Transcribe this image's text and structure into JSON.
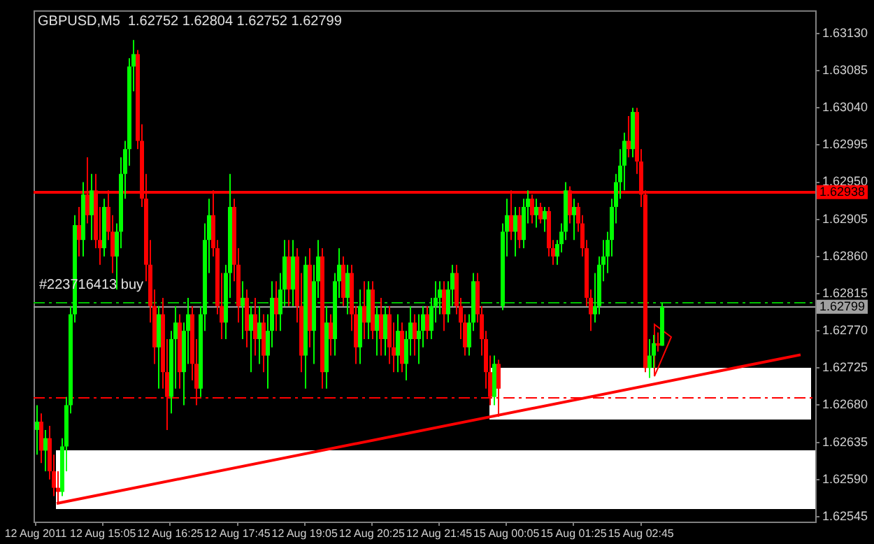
{
  "chart_data": {
    "type": "candlestick",
    "title": "GBPUSD,M5  1.62752 1.62804 1.62752 1.62799",
    "categories": [
      "12 Aug 2011",
      null,
      null,
      null,
      null,
      null,
      null,
      null,
      null,
      null,
      null,
      null,
      null,
      null,
      null,
      null,
      "12 Aug 15:05",
      null,
      null,
      null,
      null,
      null,
      null,
      null,
      null,
      null,
      null,
      null,
      null,
      null,
      null,
      null,
      "12 Aug 16:25",
      null,
      null,
      null,
      null,
      null,
      null,
      null,
      null,
      null,
      null,
      null,
      null,
      null,
      null,
      null,
      "12 Aug 17:45",
      null,
      null,
      null,
      null,
      null,
      null,
      null,
      null,
      null,
      null,
      null,
      null,
      null,
      null,
      null,
      "12 Aug 19:05",
      null,
      null,
      null,
      null,
      null,
      null,
      null,
      null,
      null,
      null,
      null,
      null,
      null,
      null,
      null,
      "12 Aug 20:25",
      null,
      null,
      null,
      null,
      null,
      null,
      null,
      null,
      null,
      null,
      null,
      null,
      null,
      null,
      null,
      "12 Aug 21:45",
      null,
      null,
      null,
      null,
      null,
      null,
      null,
      null,
      null,
      null,
      null,
      null,
      null,
      null,
      null,
      "15 Aug 00:05",
      null,
      null,
      null,
      null,
      null,
      null,
      null,
      null,
      null,
      null,
      null,
      null,
      null,
      null,
      null,
      "15 Aug 01:25",
      null,
      null,
      null,
      null,
      null,
      null,
      null,
      null,
      null,
      null,
      null,
      null,
      null,
      null,
      null,
      "15 Aug 02:45",
      null,
      null,
      null,
      null,
      null,
      null,
      null,
      null,
      null,
      null,
      null,
      null,
      null,
      null,
      null,
      null,
      null,
      null,
      null,
      null,
      null,
      null,
      null,
      null,
      null,
      null,
      null,
      null,
      null,
      null,
      null,
      null,
      null,
      null,
      null,
      null,
      null,
      null,
      null,
      null,
      null
    ],
    "ohlc": [
      [
        1.6265,
        1.6268,
        1.6262,
        1.6266
      ],
      [
        1.6266,
        1.6267,
        1.6261,
        1.62625
      ],
      [
        1.62625,
        1.6265,
        1.626,
        1.6264
      ],
      [
        1.6264,
        1.62655,
        1.6259,
        1.626
      ],
      [
        1.626,
        1.6262,
        1.6257,
        1.6258
      ],
      [
        1.6258,
        1.626,
        1.62561,
        1.62575
      ],
      [
        1.62575,
        1.6264,
        1.6257,
        1.6263
      ],
      [
        1.6263,
        1.6269,
        1.626,
        1.6268
      ],
      [
        1.6268,
        1.628,
        1.6267,
        1.6279
      ],
      [
        1.6279,
        1.6291,
        1.6278,
        1.62898
      ],
      [
        1.62898,
        1.6292,
        1.6286,
        1.6288
      ],
      [
        1.6288,
        1.6295,
        1.6286,
        1.62935
      ],
      [
        1.62935,
        1.6298,
        1.629,
        1.6291
      ],
      [
        1.6291,
        1.6296,
        1.6288,
        1.6294
      ],
      [
        1.6294,
        1.6296,
        1.6287,
        1.6288
      ],
      [
        1.6288,
        1.6292,
        1.6285,
        1.6287
      ],
      [
        1.6287,
        1.6293,
        1.6286,
        1.6292
      ],
      [
        1.6292,
        1.6294,
        1.6288,
        1.6289
      ],
      [
        1.6289,
        1.6291,
        1.6284,
        1.6286
      ],
      [
        1.6286,
        1.629,
        1.6282,
        1.6289
      ],
      [
        1.6289,
        1.6298,
        1.6287,
        1.6296
      ],
      [
        1.6296,
        1.63,
        1.6293,
        1.6299
      ],
      [
        1.6299,
        1.631,
        1.6297,
        1.6309
      ],
      [
        1.6309,
        1.63122,
        1.6306,
        1.63105
      ],
      [
        1.63105,
        1.6311,
        1.6299,
        1.63
      ],
      [
        1.63,
        1.6302,
        1.6292,
        1.6293
      ],
      [
        1.6293,
        1.6296,
        1.6283,
        1.6285
      ],
      [
        1.6285,
        1.6288,
        1.6278,
        1.628
      ],
      [
        1.628,
        1.6282,
        1.6273,
        1.6275
      ],
      [
        1.6275,
        1.628,
        1.627,
        1.6279
      ],
      [
        1.6279,
        1.6281,
        1.627,
        1.6272
      ],
      [
        1.6272,
        1.6276,
        1.6265,
        1.6269
      ],
      [
        1.6269,
        1.6277,
        1.6267,
        1.6276
      ],
      [
        1.6276,
        1.628,
        1.627,
        1.6278
      ],
      [
        1.6278,
        1.6279,
        1.627,
        1.6272
      ],
      [
        1.6272,
        1.6278,
        1.6268,
        1.6277
      ],
      [
        1.6277,
        1.6281,
        1.6273,
        1.6279
      ],
      [
        1.6279,
        1.628,
        1.6271,
        1.6273
      ],
      [
        1.6273,
        1.6276,
        1.6268,
        1.627
      ],
      [
        1.627,
        1.628,
        1.6269,
        1.6279
      ],
      [
        1.6279,
        1.629,
        1.6277,
        1.6288
      ],
      [
        1.6288,
        1.6293,
        1.6284,
        1.6291
      ],
      [
        1.6291,
        1.6294,
        1.6286,
        1.6287
      ],
      [
        1.6287,
        1.6288,
        1.6279,
        1.628
      ],
      [
        1.628,
        1.6284,
        1.6276,
        1.6278
      ],
      [
        1.6278,
        1.6285,
        1.6276,
        1.6284
      ],
      [
        1.6284,
        1.6296,
        1.6281,
        1.6292
      ],
      [
        1.6292,
        1.6293,
        1.6283,
        1.6285
      ],
      [
        1.6285,
        1.6287,
        1.6278,
        1.628
      ],
      [
        1.628,
        1.6283,
        1.6276,
        1.6281
      ],
      [
        1.6281,
        1.6282,
        1.6275,
        1.6277
      ],
      [
        1.6277,
        1.628,
        1.6272,
        1.6279
      ],
      [
        1.6279,
        1.6281,
        1.6274,
        1.6276
      ],
      [
        1.6276,
        1.628,
        1.6273,
        1.6278
      ],
      [
        1.6278,
        1.6279,
        1.6272,
        1.6274
      ],
      [
        1.6274,
        1.6279,
        1.627,
        1.6277
      ],
      [
        1.6277,
        1.6283,
        1.6275,
        1.6281
      ],
      [
        1.6281,
        1.6283,
        1.6277,
        1.6279
      ],
      [
        1.6279,
        1.6284,
        1.6277,
        1.6282
      ],
      [
        1.6282,
        1.6288,
        1.628,
        1.6286
      ],
      [
        1.6286,
        1.6288,
        1.628,
        1.6282
      ],
      [
        1.6282,
        1.6288,
        1.628,
        1.6286
      ],
      [
        1.6286,
        1.6287,
        1.6278,
        1.628
      ],
      [
        1.628,
        1.6284,
        1.6272,
        1.6274
      ],
      [
        1.6274,
        1.6286,
        1.627,
        1.6285
      ],
      [
        1.6285,
        1.6287,
        1.6275,
        1.6277
      ],
      [
        1.6277,
        1.6285,
        1.6273,
        1.6283
      ],
      [
        1.6283,
        1.6288,
        1.6281,
        1.6286
      ],
      [
        1.6286,
        1.6287,
        1.627,
        1.6272
      ],
      [
        1.6272,
        1.628,
        1.627,
        1.6278
      ],
      [
        1.6278,
        1.6279,
        1.6274,
        1.6276
      ],
      [
        1.6276,
        1.6284,
        1.6274,
        1.6283
      ],
      [
        1.6283,
        1.6287,
        1.6281,
        1.6285
      ],
      [
        1.6285,
        1.6286,
        1.628,
        1.6281
      ],
      [
        1.6281,
        1.6285,
        1.6279,
        1.6284
      ],
      [
        1.6284,
        1.6285,
        1.6277,
        1.6279
      ],
      [
        1.6279,
        1.628,
        1.6273,
        1.6275
      ],
      [
        1.6275,
        1.6282,
        1.6273,
        1.628
      ],
      [
        1.628,
        1.6283,
        1.6276,
        1.6278
      ],
      [
        1.6278,
        1.6283,
        1.6276,
        1.6282
      ],
      [
        1.6282,
        1.6283,
        1.6276,
        1.6277
      ],
      [
        1.6277,
        1.628,
        1.6274,
        1.6279
      ],
      [
        1.6279,
        1.6281,
        1.6274,
        1.6276
      ],
      [
        1.6276,
        1.628,
        1.6274,
        1.6279
      ],
      [
        1.6279,
        1.628,
        1.6273,
        1.6275
      ],
      [
        1.6275,
        1.6278,
        1.6272,
        1.6274
      ],
      [
        1.6274,
        1.6279,
        1.6272,
        1.6277
      ],
      [
        1.6277,
        1.6278,
        1.6272,
        1.6273
      ],
      [
        1.6273,
        1.6277,
        1.6271,
        1.6276
      ],
      [
        1.6276,
        1.628,
        1.6274,
        1.6278
      ],
      [
        1.6278,
        1.6279,
        1.6274,
        1.6276
      ],
      [
        1.6276,
        1.6279,
        1.6273,
        1.6277
      ],
      [
        1.6277,
        1.628,
        1.6275,
        1.6279
      ],
      [
        1.6279,
        1.628,
        1.6276,
        1.6277
      ],
      [
        1.6277,
        1.6281,
        1.6276,
        1.628
      ],
      [
        1.628,
        1.6283,
        1.6278,
        1.6281
      ],
      [
        1.6281,
        1.6283,
        1.6279,
        1.6282
      ],
      [
        1.6282,
        1.6283,
        1.6277,
        1.6279
      ],
      [
        1.6279,
        1.6283,
        1.6278,
        1.6282
      ],
      [
        1.6282,
        1.6285,
        1.628,
        1.6284
      ],
      [
        1.6284,
        1.6285,
        1.6279,
        1.628
      ],
      [
        1.628,
        1.6281,
        1.6276,
        1.6278
      ],
      [
        1.6278,
        1.6279,
        1.6274,
        1.6275
      ],
      [
        1.6275,
        1.6279,
        1.6274,
        1.6278
      ],
      [
        1.6278,
        1.6284,
        1.6277,
        1.6283
      ],
      [
        1.6283,
        1.6284,
        1.6278,
        1.6279
      ],
      [
        1.6279,
        1.628,
        1.6274,
        1.6276
      ],
      [
        1.6276,
        1.6277,
        1.627,
        1.6272
      ],
      [
        1.6272,
        1.6274,
        1.6268,
        1.6269
      ],
      [
        1.6269,
        1.6274,
        1.6268,
        1.6273
      ],
      [
        1.6273,
        1.62735,
        1.62666,
        1.627
      ],
      [
        1.628,
        1.629,
        1.62795,
        1.6289
      ],
      [
        1.6289,
        1.6293,
        1.6286,
        1.6291
      ],
      [
        1.6291,
        1.6294,
        1.6288,
        1.6289
      ],
      [
        1.6289,
        1.6292,
        1.6286,
        1.6291
      ],
      [
        1.6291,
        1.6292,
        1.6287,
        1.6288
      ],
      [
        1.6288,
        1.6293,
        1.6287,
        1.6292
      ],
      [
        1.6292,
        1.6294,
        1.629,
        1.6293
      ],
      [
        1.6293,
        1.62935,
        1.629,
        1.6291
      ],
      [
        1.6291,
        1.6293,
        1.62895,
        1.6292
      ],
      [
        1.6292,
        1.62925,
        1.629,
        1.62905
      ],
      [
        1.62905,
        1.6292,
        1.6289,
        1.62915
      ],
      [
        1.62915,
        1.6292,
        1.6286,
        1.6287
      ],
      [
        1.6287,
        1.6288,
        1.6285,
        1.6286
      ],
      [
        1.6286,
        1.6288,
        1.6285,
        1.62875
      ],
      [
        1.62875,
        1.629,
        1.62865,
        1.6289
      ],
      [
        1.6289,
        1.6295,
        1.6288,
        1.6294
      ],
      [
        1.6294,
        1.62945,
        1.629,
        1.6291
      ],
      [
        1.6291,
        1.6293,
        1.6288,
        1.6292
      ],
      [
        1.6292,
        1.62925,
        1.6289,
        1.629
      ],
      [
        1.629,
        1.6291,
        1.6286,
        1.6287
      ],
      [
        1.6287,
        1.6288,
        1.628,
        1.6281
      ],
      [
        1.6281,
        1.6282,
        1.6277,
        1.6279
      ],
      [
        1.6279,
        1.6284,
        1.6278,
        1.628
      ],
      [
        1.628,
        1.6286,
        1.6279,
        1.6285
      ],
      [
        1.6285,
        1.6288,
        1.6283,
        1.6286
      ],
      [
        1.6286,
        1.6289,
        1.6284,
        1.6288
      ],
      [
        1.6288,
        1.6293,
        1.6286,
        1.6292
      ],
      [
        1.6292,
        1.6296,
        1.629,
        1.6295
      ],
      [
        1.6295,
        1.6299,
        1.6293,
        1.6297
      ],
      [
        1.6297,
        1.6301,
        1.6294,
        1.63
      ],
      [
        1.63,
        1.6303,
        1.6298,
        1.6299
      ],
      [
        1.6299,
        1.6304,
        1.6298,
        1.63035
      ],
      [
        1.63035,
        1.6304,
        1.6296,
        1.62975
      ],
      [
        1.62975,
        1.6299,
        1.6292,
        1.62935
      ],
      [
        1.62935,
        1.6294,
        1.6272,
        1.62725
      ],
      [
        1.62725,
        1.6276,
        1.62713,
        1.6274
      ],
      [
        1.6274,
        1.62765,
        1.62725,
        1.62755
      ],
      [
        1.62755,
        1.62768,
        1.62745,
        1.62752
      ],
      [
        1.62752,
        1.62804,
        1.62752,
        1.62799
      ],
      null,
      null,
      null,
      null,
      null,
      null,
      null,
      null,
      null,
      null,
      null,
      null,
      null,
      null,
      null,
      null,
      null,
      null,
      null,
      null,
      null,
      null,
      null,
      null,
      null,
      null,
      null,
      null,
      null,
      null,
      null,
      null,
      null,
      null,
      null,
      null
    ],
    "series": [
      {
        "type": "line",
        "color": "#ff0000",
        "values": [
          null,
          null,
          null,
          null,
          null,
          1.62561,
          null,
          null,
          null,
          null,
          null,
          null,
          null,
          null,
          null,
          null,
          null,
          null,
          null,
          null,
          null,
          null,
          null,
          null,
          null,
          null,
          null,
          null,
          null,
          null,
          null,
          null,
          null,
          null,
          null,
          null,
          null,
          null,
          null,
          null,
          null,
          null,
          null,
          null,
          null,
          null,
          null,
          null,
          null,
          null,
          null,
          null,
          null,
          null,
          null,
          null,
          null,
          null,
          null,
          null,
          null,
          null,
          null,
          null,
          null,
          null,
          null,
          null,
          null,
          null,
          null,
          null,
          null,
          null,
          null,
          null,
          null,
          null,
          null,
          null,
          null,
          null,
          null,
          null,
          null,
          null,
          null,
          null,
          null,
          null,
          null,
          null,
          null,
          null,
          null,
          null,
          null,
          null,
          null,
          null,
          null,
          null,
          null,
          null,
          null,
          null,
          null,
          null,
          null,
          null,
          null,
          null,
          null,
          null,
          null,
          null,
          null,
          null,
          null,
          null,
          null,
          null,
          null,
          null,
          null,
          null,
          null,
          null,
          null,
          null,
          null,
          null,
          null,
          null,
          null,
          null,
          null,
          null,
          null,
          null,
          null,
          null,
          null,
          null,
          null,
          null,
          null,
          null,
          null,
          null,
          null,
          null,
          null,
          null,
          null,
          null,
          null,
          null,
          null,
          null,
          null,
          null,
          null,
          null,
          null,
          null,
          null,
          null,
          null,
          null,
          null,
          null,
          null,
          null,
          null,
          null,
          null,
          null,
          null,
          null,
          null,
          null,
          1.62741,
          null,
          null,
          null
        ]
      }
    ],
    "ylim": [
      1.62539,
      1.63158
    ],
    "yticks": [
      {
        "value": 1.6313,
        "label": "1.63130"
      },
      1.63085,
      {
        "value": 1.6304,
        "label": "1.63040"
      },
      1.62995,
      {
        "value": 1.6295,
        "label": "1.62950"
      },
      1.62905,
      {
        "value": 1.6286,
        "label": "1.62860"
      },
      1.62815,
      {
        "value": 1.6277,
        "label": "1.62770"
      },
      1.62725,
      {
        "value": 1.6268,
        "label": "1.62680"
      },
      1.62635,
      {
        "value": 1.6259,
        "label": "1.62590"
      },
      1.62545
    ],
    "ref_lines": [
      {
        "axis": "y",
        "value": 1.62938,
        "label": "1.62938",
        "color": "#ff0000",
        "line_style": "solid"
      },
      {
        "axis": "y",
        "value": 1.62805,
        "label": "#223716413 buy",
        "color": "#00c000",
        "line_style": "dashed"
      },
      {
        "axis": "y",
        "value": 1.62799,
        "label": "1.62799",
        "color": "#a0a0a0",
        "line_style": "solid"
      },
      {
        "axis": "y",
        "value": 1.6269,
        "color": "#ff0000",
        "line_style": "dashed"
      }
    ]
  }
}
